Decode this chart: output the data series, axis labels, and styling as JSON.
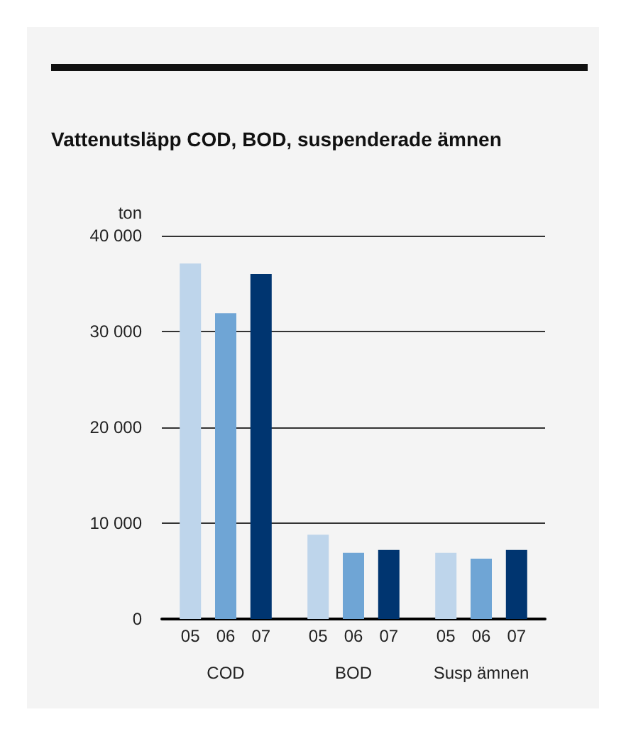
{
  "chart_data": {
    "type": "bar",
    "title": "Vattenutsläpp COD, BOD, suspenderade ämnen",
    "ylabel": "ton",
    "categories": [
      "COD",
      "BOD",
      "Susp ämnen"
    ],
    "series": [
      {
        "name": "05",
        "color": "#bed5eb",
        "values": [
          37100,
          8800,
          6900
        ]
      },
      {
        "name": "06",
        "color": "#6fa5d5",
        "values": [
          31900,
          6900,
          6300
        ]
      },
      {
        "name": "07",
        "color": "#003570",
        "values": [
          36000,
          7200,
          7200
        ]
      }
    ],
    "ylim": [
      0,
      40000
    ],
    "yticks": [
      0,
      {
        "value": 10000,
        "label": "10 000"
      },
      {
        "value": 20000,
        "label": "20 000"
      },
      {
        "value": 30000,
        "label": "30 000"
      },
      {
        "value": 40000,
        "label": "40 000"
      }
    ],
    "grid": "y",
    "legend": false
  }
}
